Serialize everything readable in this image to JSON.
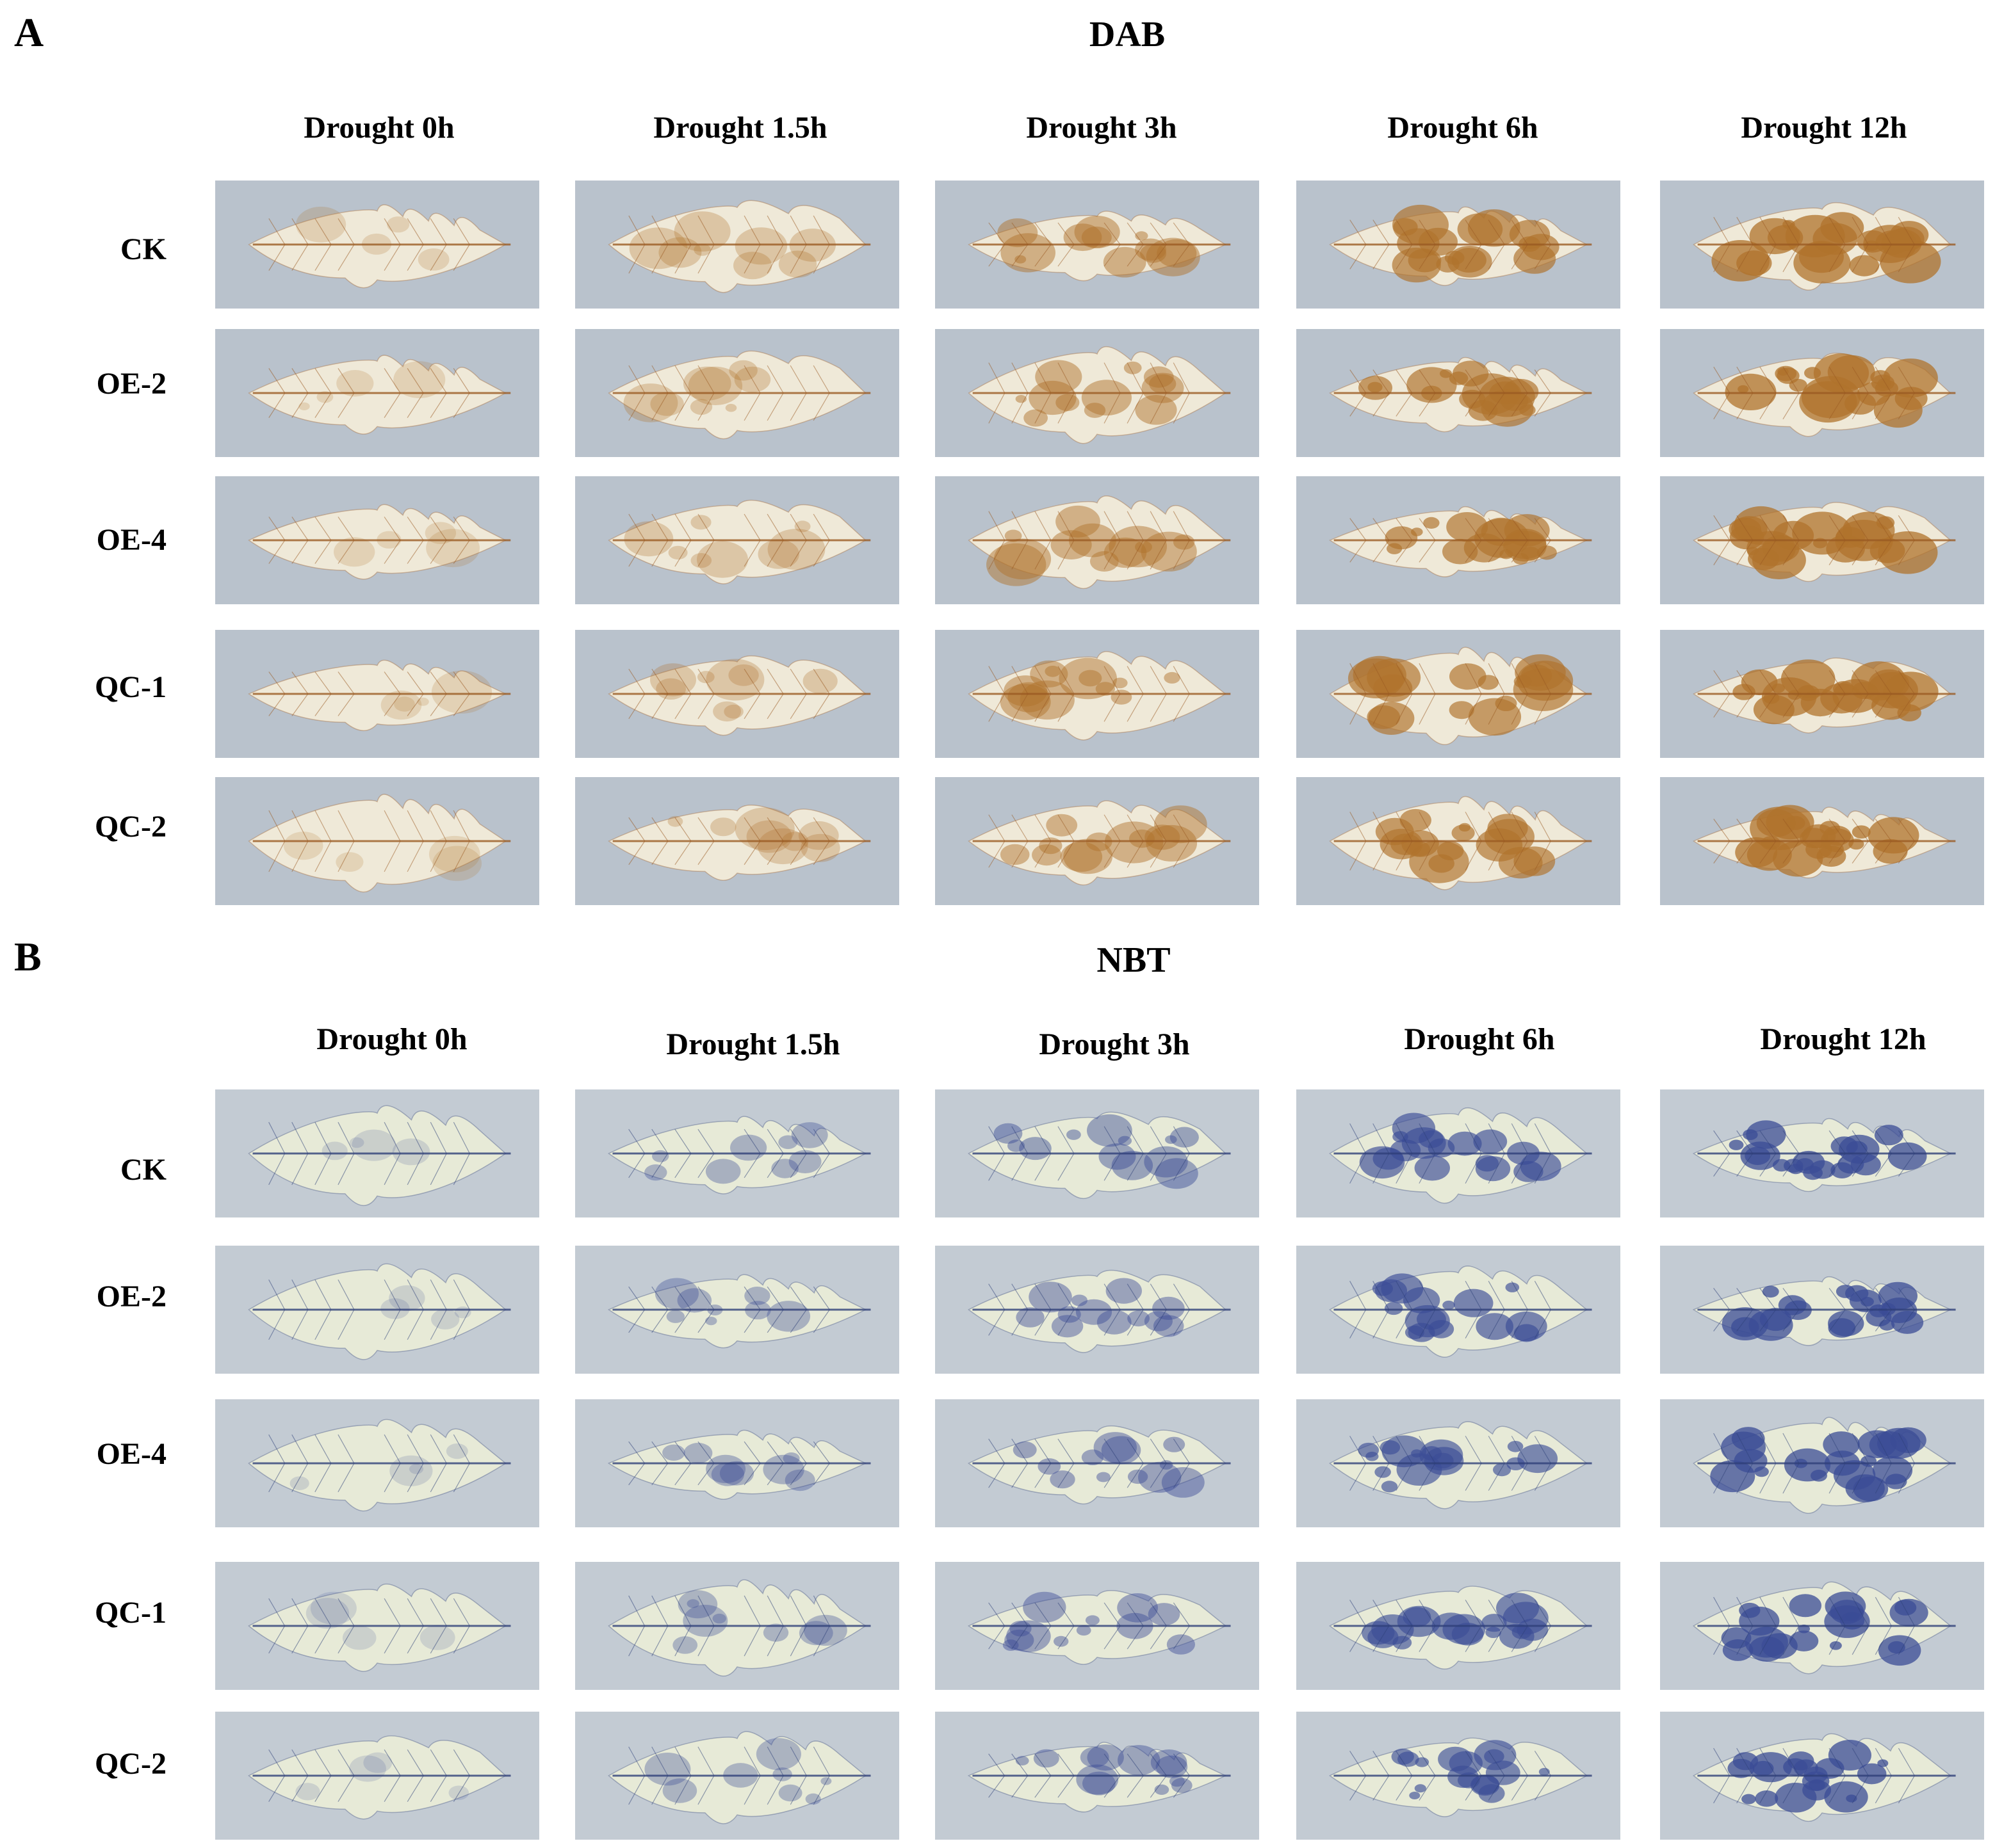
{
  "figure": {
    "panels": [
      {
        "letter": "A",
        "title": "DAB",
        "stain": "brown",
        "columns": [
          "Drought 0h",
          "Drought 1.5h",
          "Drought 3h",
          "Drought 6h",
          "Drought 12h"
        ],
        "rows": [
          "CK",
          "OE-2",
          "OE-4",
          "QC-1",
          "QC-2"
        ],
        "colors": {
          "background": "#b9c2cc",
          "leaf": "#efe9d8",
          "vein": "#9a5a22",
          "stain": "#b0732c"
        }
      },
      {
        "letter": "B",
        "title": "NBT",
        "stain": "blue",
        "columns": [
          "Drought 0h",
          "Drought 1.5h",
          "Drought 3h",
          "Drought 6h",
          "Drought 12h"
        ],
        "rows": [
          "CK",
          "OE-2",
          "OE-4",
          "QC-1",
          "QC-2"
        ],
        "colors": {
          "background": "#c3cbd3",
          "leaf": "#e7ead7",
          "vein": "#2e3f78",
          "stain": "#3b4c96"
        }
      }
    ]
  }
}
